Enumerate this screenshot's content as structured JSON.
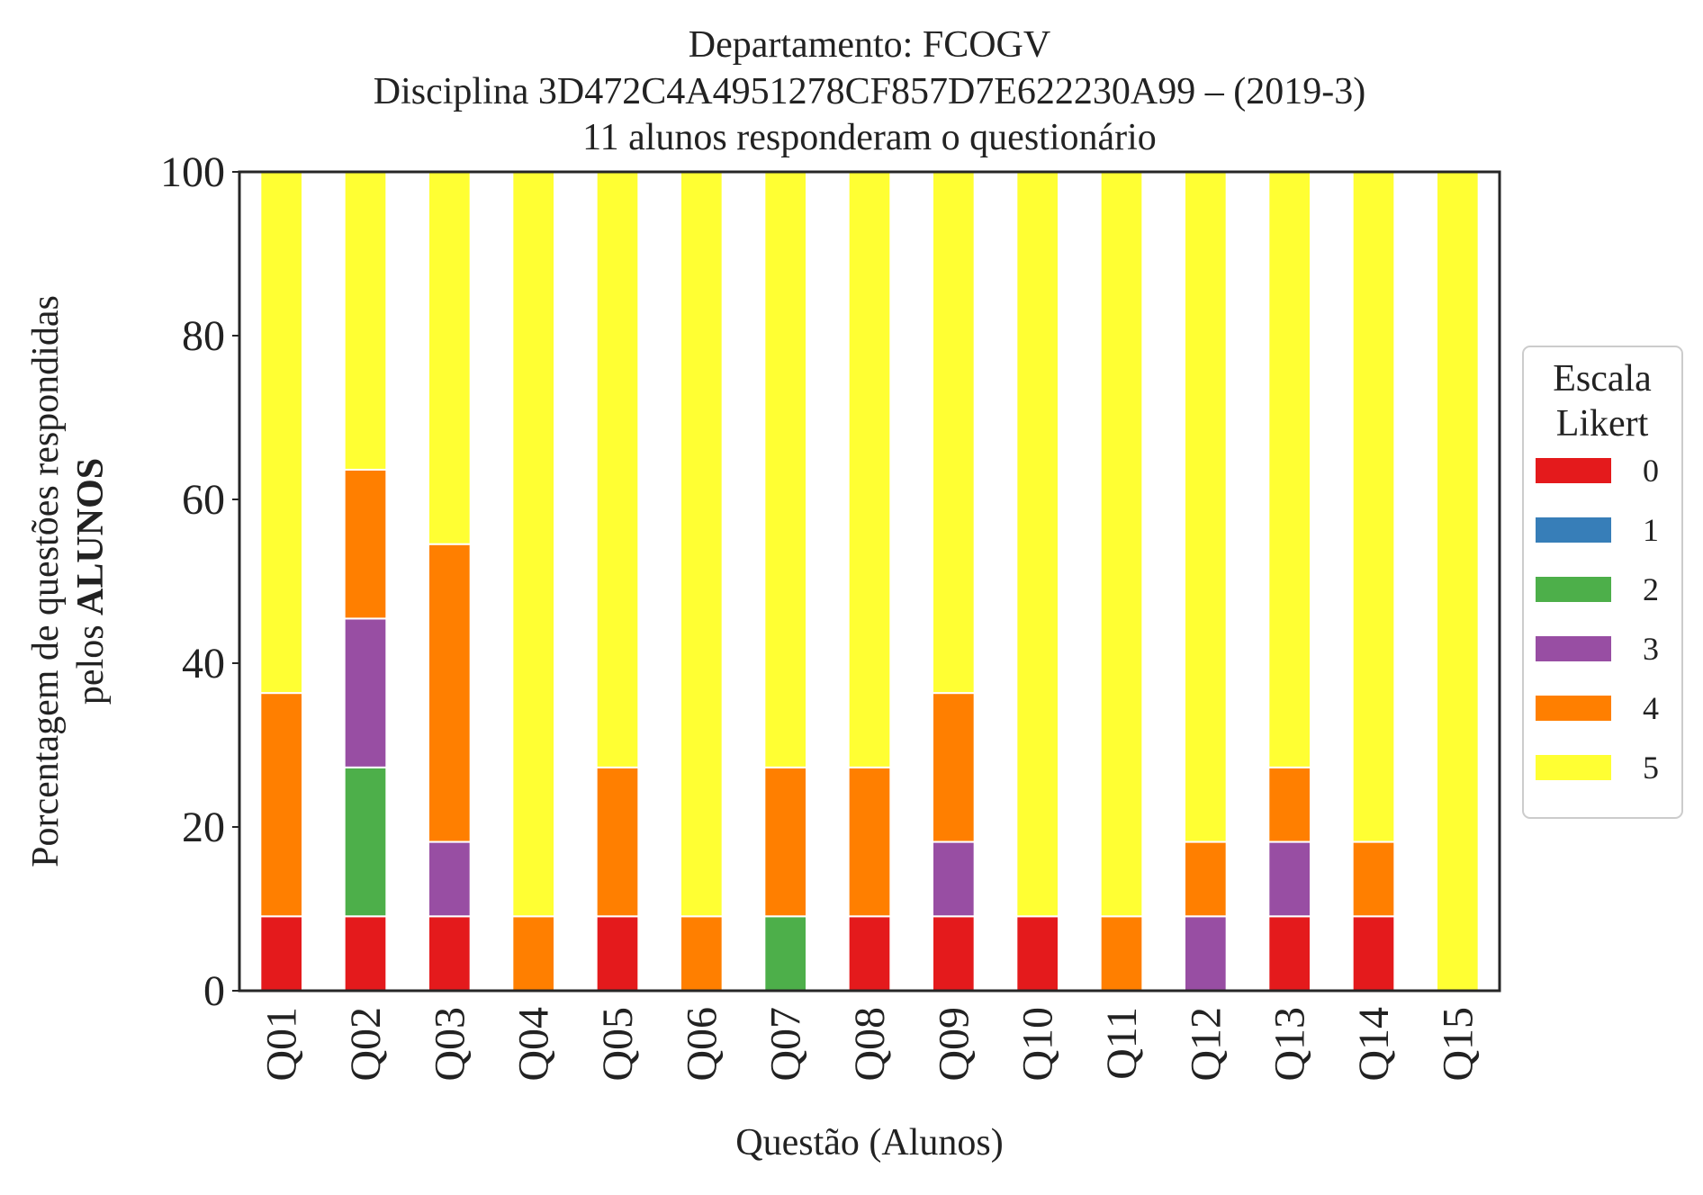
{
  "chart_data": {
    "type": "bar",
    "stacked": true,
    "title_lines": [
      "Departamento: FCOGV",
      "Disciplina 3D472C4A4951278CF857D7E622230A99 – (2019-3)",
      "11 alunos responderam o questionário"
    ],
    "xlabel": "Questão (Alunos)",
    "ylabel_line1": "Porcentagem de questões respondidas",
    "ylabel_line2_prefix": "pelos ",
    "ylabel_line2_bold": "ALUNOS",
    "ylim": [
      0,
      100
    ],
    "yticks": [
      "0",
      "20",
      "40",
      "60",
      "80",
      "100"
    ],
    "categories": [
      "Q01",
      "Q02",
      "Q03",
      "Q04",
      "Q05",
      "Q06",
      "Q07",
      "Q08",
      "Q09",
      "Q10",
      "Q11",
      "Q12",
      "Q13",
      "Q14",
      "Q15"
    ],
    "legend": {
      "title_line1": "Escala",
      "title_line2": "Likert",
      "position": "right"
    },
    "series": [
      {
        "name": "0",
        "color": "#e41a1c",
        "values": [
          9.09,
          9.09,
          9.09,
          0,
          9.09,
          0,
          0,
          9.09,
          9.09,
          9.09,
          0,
          0,
          9.09,
          9.09,
          0
        ]
      },
      {
        "name": "1",
        "color": "#377eb8",
        "values": [
          0,
          0,
          0,
          0,
          0,
          0,
          0,
          0,
          0,
          0,
          0,
          0,
          0,
          0,
          0
        ]
      },
      {
        "name": "2",
        "color": "#4daf4a",
        "values": [
          0,
          18.18,
          0,
          0,
          0,
          0,
          9.09,
          0,
          0,
          0,
          0,
          0,
          0,
          0,
          0
        ]
      },
      {
        "name": "3",
        "color": "#984ea3",
        "values": [
          0,
          18.18,
          9.09,
          0,
          0,
          0,
          0,
          0,
          9.09,
          0,
          0,
          9.09,
          9.09,
          0,
          0
        ]
      },
      {
        "name": "4",
        "color": "#ff7f00",
        "values": [
          27.27,
          18.18,
          36.36,
          9.09,
          18.18,
          9.09,
          18.18,
          18.18,
          18.18,
          0,
          9.09,
          9.09,
          9.09,
          9.09,
          0
        ]
      },
      {
        "name": "5",
        "color": "#ffff33",
        "values": [
          63.64,
          36.36,
          45.45,
          90.91,
          72.73,
          90.91,
          72.73,
          72.73,
          63.64,
          90.91,
          90.91,
          81.82,
          72.73,
          81.82,
          100
        ]
      }
    ]
  }
}
